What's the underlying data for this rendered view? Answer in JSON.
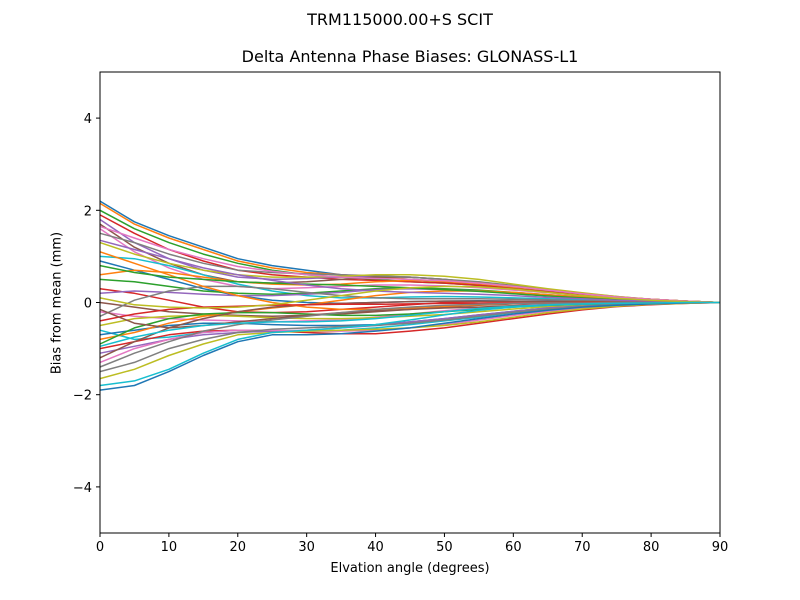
{
  "chart_data": {
    "type": "line",
    "suptitle": "TRM115000.00+S  SCIT",
    "title": "Delta Antenna Phase Biases: GLONASS-L1",
    "xlabel": "Elvation angle (degrees)",
    "ylabel": "Bias from mean (mm)",
    "xlim": [
      0,
      90
    ],
    "ylim": [
      -5,
      5
    ],
    "xticks": [
      0,
      10,
      20,
      30,
      40,
      50,
      60,
      70,
      80,
      90
    ],
    "yticks": [
      -4,
      -2,
      0,
      2,
      4
    ],
    "ytick_labels": [
      "−4",
      "−2",
      "0",
      "2",
      "4"
    ],
    "grid": false,
    "legend": "none",
    "x": [
      0,
      5,
      10,
      15,
      20,
      25,
      30,
      35,
      40,
      45,
      50,
      55,
      60,
      65,
      70,
      75,
      80,
      85,
      90
    ],
    "series": [
      {
        "values": [
          2.2,
          1.75,
          1.45,
          1.2,
          0.95,
          0.8,
          0.7,
          0.6,
          0.55,
          0.5,
          0.45,
          0.4,
          0.33,
          0.25,
          0.18,
          0.12,
          0.07,
          0.03,
          0
        ]
      },
      {
        "values": [
          2.15,
          1.7,
          1.4,
          1.15,
          0.9,
          0.75,
          0.65,
          0.6,
          0.55,
          0.5,
          0.45,
          0.4,
          0.32,
          0.25,
          0.18,
          0.12,
          0.07,
          0.03,
          0
        ]
      },
      {
        "values": [
          2.0,
          1.6,
          1.3,
          1.05,
          0.85,
          0.7,
          0.6,
          0.55,
          0.5,
          0.45,
          0.42,
          0.37,
          0.3,
          0.23,
          0.17,
          0.11,
          0.06,
          0.03,
          0
        ]
      },
      {
        "values": [
          1.9,
          1.5,
          1.15,
          0.9,
          0.7,
          0.6,
          0.55,
          0.5,
          0.48,
          0.45,
          0.42,
          0.37,
          0.3,
          0.23,
          0.17,
          0.11,
          0.06,
          0.03,
          0
        ]
      },
      {
        "values": [
          1.8,
          1.3,
          0.95,
          0.7,
          0.55,
          0.5,
          0.52,
          0.55,
          0.57,
          0.55,
          0.5,
          0.43,
          0.35,
          0.27,
          0.19,
          0.12,
          0.07,
          0.03,
          0
        ]
      },
      {
        "values": [
          1.7,
          1.2,
          0.85,
          0.6,
          0.45,
          0.42,
          0.45,
          0.5,
          0.55,
          0.55,
          0.5,
          0.43,
          0.35,
          0.27,
          0.19,
          0.12,
          0.07,
          0.03,
          0
        ]
      },
      {
        "values": [
          1.6,
          1.1,
          0.75,
          0.5,
          0.35,
          0.3,
          0.32,
          0.35,
          0.38,
          0.38,
          0.36,
          0.32,
          0.27,
          0.21,
          0.15,
          0.1,
          0.06,
          0.02,
          0
        ]
      },
      {
        "values": [
          1.5,
          1.3,
          1.05,
          0.85,
          0.7,
          0.65,
          0.62,
          0.6,
          0.58,
          0.55,
          0.5,
          0.45,
          0.37,
          0.28,
          0.2,
          0.13,
          0.07,
          0.03,
          0
        ]
      },
      {
        "values": [
          1.3,
          1.05,
          0.85,
          0.7,
          0.6,
          0.55,
          0.55,
          0.57,
          0.6,
          0.6,
          0.57,
          0.5,
          0.4,
          0.3,
          0.21,
          0.13,
          0.07,
          0.03,
          0
        ]
      },
      {
        "values": [
          1.0,
          0.95,
          0.8,
          0.6,
          0.4,
          0.25,
          0.15,
          0.1,
          0.1,
          0.12,
          0.13,
          0.12,
          0.1,
          0.08,
          0.06,
          0.04,
          0.02,
          0.01,
          0
        ]
      },
      {
        "values": [
          0.9,
          0.7,
          0.5,
          0.3,
          0.15,
          0.05,
          0.0,
          -0.02,
          0.0,
          0.02,
          0.03,
          0.04,
          0.03,
          0.03,
          0.02,
          0.01,
          0.01,
          0.0,
          0
        ]
      },
      {
        "values": [
          0.6,
          0.7,
          0.65,
          0.55,
          0.45,
          0.4,
          0.38,
          0.4,
          0.45,
          0.48,
          0.47,
          0.42,
          0.35,
          0.27,
          0.19,
          0.12,
          0.07,
          0.03,
          0
        ]
      },
      {
        "values": [
          0.5,
          0.45,
          0.35,
          0.25,
          0.2,
          0.18,
          0.2,
          0.25,
          0.3,
          0.32,
          0.3,
          0.27,
          0.22,
          0.17,
          0.12,
          0.08,
          0.04,
          0.02,
          0
        ]
      },
      {
        "values": [
          0.3,
          0.2,
          0.05,
          -0.1,
          -0.2,
          -0.22,
          -0.2,
          -0.15,
          -0.1,
          -0.05,
          0.0,
          0.02,
          0.02,
          0.02,
          0.02,
          0.01,
          0.01,
          0.0,
          0
        ]
      },
      {
        "values": [
          0.2,
          0.25,
          0.22,
          0.18,
          0.15,
          0.15,
          0.18,
          0.22,
          0.28,
          0.3,
          0.28,
          0.25,
          0.2,
          0.15,
          0.11,
          0.07,
          0.04,
          0.02,
          0
        ]
      },
      {
        "values": [
          0.0,
          -0.1,
          -0.2,
          -0.25,
          -0.28,
          -0.3,
          -0.28,
          -0.25,
          -0.2,
          -0.15,
          -0.1,
          -0.06,
          -0.03,
          -0.02,
          -0.01,
          -0.01,
          0.0,
          0.0,
          0
        ]
      },
      {
        "values": [
          -0.2,
          -0.3,
          -0.35,
          -0.38,
          -0.4,
          -0.42,
          -0.4,
          -0.38,
          -0.32,
          -0.25,
          -0.18,
          -0.12,
          -0.07,
          -0.04,
          -0.03,
          -0.02,
          -0.01,
          0.0,
          0
        ]
      },
      {
        "values": [
          -0.3,
          0.05,
          0.25,
          0.35,
          0.35,
          0.3,
          0.22,
          0.15,
          0.1,
          0.08,
          0.08,
          0.08,
          0.07,
          0.06,
          0.04,
          0.03,
          0.02,
          0.01,
          0
        ]
      },
      {
        "values": [
          -0.5,
          -0.35,
          -0.3,
          -0.28,
          -0.3,
          -0.33,
          -0.35,
          -0.35,
          -0.33,
          -0.3,
          -0.26,
          -0.2,
          -0.14,
          -0.09,
          -0.06,
          -0.04,
          -0.02,
          -0.01,
          0
        ]
      },
      {
        "values": [
          -0.6,
          -0.8,
          -0.75,
          -0.65,
          -0.6,
          -0.62,
          -0.62,
          -0.6,
          -0.55,
          -0.48,
          -0.4,
          -0.32,
          -0.22,
          -0.15,
          -0.09,
          -0.05,
          -0.03,
          -0.01,
          0
        ]
      },
      {
        "values": [
          -0.7,
          -0.6,
          -0.5,
          -0.45,
          -0.45,
          -0.48,
          -0.5,
          -0.5,
          -0.48,
          -0.42,
          -0.35,
          -0.27,
          -0.19,
          -0.12,
          -0.08,
          -0.05,
          -0.03,
          -0.01,
          0
        ]
      },
      {
        "values": [
          -0.8,
          -0.65,
          -0.45,
          -0.3,
          -0.2,
          -0.12,
          -0.05,
          0.05,
          0.15,
          0.22,
          0.25,
          0.25,
          0.22,
          0.17,
          0.12,
          0.08,
          0.04,
          0.02,
          0
        ]
      },
      {
        "values": [
          -0.9,
          -0.55,
          -0.35,
          -0.25,
          -0.22,
          -0.22,
          -0.25,
          -0.28,
          -0.28,
          -0.25,
          -0.2,
          -0.15,
          -0.1,
          -0.06,
          -0.04,
          -0.03,
          -0.02,
          -0.01,
          0
        ]
      },
      {
        "values": [
          -1.0,
          -0.85,
          -0.7,
          -0.62,
          -0.6,
          -0.62,
          -0.65,
          -0.68,
          -0.68,
          -0.62,
          -0.55,
          -0.45,
          -0.35,
          -0.25,
          -0.16,
          -0.09,
          -0.05,
          -0.02,
          0
        ]
      },
      {
        "values": [
          -1.1,
          -0.95,
          -0.8,
          -0.7,
          -0.65,
          -0.62,
          -0.6,
          -0.55,
          -0.5,
          -0.42,
          -0.35,
          -0.27,
          -0.19,
          -0.12,
          -0.08,
          -0.05,
          -0.03,
          -0.01,
          0
        ]
      },
      {
        "values": [
          -1.2,
          -0.85,
          -0.55,
          -0.35,
          -0.2,
          -0.1,
          -0.05,
          -0.02,
          0.0,
          0.02,
          0.03,
          0.03,
          0.03,
          0.02,
          0.02,
          0.01,
          0.01,
          0.0,
          0
        ]
      },
      {
        "values": [
          -1.3,
          -1.0,
          -0.8,
          -0.65,
          -0.6,
          -0.6,
          -0.62,
          -0.62,
          -0.6,
          -0.55,
          -0.48,
          -0.38,
          -0.28,
          -0.19,
          -0.12,
          -0.07,
          -0.04,
          -0.02,
          0
        ]
      },
      {
        "values": [
          -1.5,
          -1.3,
          -1.0,
          -0.8,
          -0.65,
          -0.58,
          -0.55,
          -0.52,
          -0.5,
          -0.45,
          -0.38,
          -0.3,
          -0.21,
          -0.14,
          -0.09,
          -0.05,
          -0.03,
          -0.01,
          0
        ]
      },
      {
        "values": [
          -1.65,
          -1.45,
          -1.15,
          -0.9,
          -0.7,
          -0.65,
          -0.62,
          -0.6,
          -0.58,
          -0.55,
          -0.5,
          -0.42,
          -0.32,
          -0.22,
          -0.14,
          -0.08,
          -0.04,
          -0.02,
          0
        ]
      },
      {
        "values": [
          -1.8,
          -1.7,
          -1.45,
          -1.1,
          -0.8,
          -0.65,
          -0.6,
          -0.55,
          -0.48,
          -0.38,
          -0.27,
          -0.17,
          -0.1,
          -0.06,
          -0.04,
          -0.02,
          -0.01,
          0.0,
          0
        ]
      },
      {
        "values": [
          -1.9,
          -1.8,
          -1.5,
          -1.15,
          -0.85,
          -0.7,
          -0.7,
          -0.68,
          -0.62,
          -0.55,
          -0.45,
          -0.35,
          -0.25,
          -0.17,
          -0.1,
          -0.06,
          -0.03,
          -0.01,
          0
        ]
      },
      {
        "values": [
          1.1,
          0.85,
          0.6,
          0.35,
          0.15,
          0.0,
          -0.1,
          -0.15,
          -0.15,
          -0.12,
          -0.08,
          -0.05,
          -0.02,
          -0.01,
          0.0,
          0.0,
          0.0,
          0.0,
          0
        ]
      },
      {
        "values": [
          0.8,
          0.65,
          0.55,
          0.5,
          0.45,
          0.42,
          0.4,
          0.38,
          0.35,
          0.32,
          0.28,
          0.24,
          0.19,
          0.14,
          0.1,
          0.06,
          0.03,
          0.01,
          0
        ]
      },
      {
        "values": [
          -0.4,
          -0.25,
          -0.15,
          -0.1,
          -0.08,
          -0.06,
          -0.05,
          -0.04,
          -0.04,
          -0.03,
          -0.02,
          -0.02,
          -0.01,
          -0.01,
          0.0,
          0.0,
          0.0,
          0.0,
          0
        ]
      },
      {
        "values": [
          1.35,
          1.15,
          0.95,
          0.75,
          0.6,
          0.48,
          0.38,
          0.3,
          0.25,
          0.22,
          0.2,
          0.18,
          0.15,
          0.11,
          0.08,
          0.05,
          0.03,
          0.01,
          0
        ]
      },
      {
        "values": [
          -0.15,
          -0.45,
          -0.55,
          -0.5,
          -0.42,
          -0.35,
          -0.28,
          -0.22,
          -0.18,
          -0.15,
          -0.12,
          -0.1,
          -0.07,
          -0.05,
          -0.03,
          -0.02,
          -0.01,
          0.0,
          0
        ]
      },
      {
        "values": [
          1.65,
          1.4,
          1.15,
          0.95,
          0.78,
          0.68,
          0.6,
          0.55,
          0.52,
          0.5,
          0.47,
          0.42,
          0.35,
          0.27,
          0.19,
          0.12,
          0.07,
          0.03,
          0
        ]
      },
      {
        "values": [
          -1.4,
          -1.1,
          -0.85,
          -0.62,
          -0.48,
          -0.38,
          -0.3,
          -0.22,
          -0.15,
          -0.1,
          -0.06,
          -0.04,
          -0.02,
          -0.01,
          -0.01,
          0.0,
          0.0,
          0.0,
          0
        ]
      },
      {
        "values": [
          0.1,
          -0.05,
          -0.1,
          -0.12,
          -0.1,
          -0.05,
          0.05,
          0.15,
          0.25,
          0.32,
          0.35,
          0.34,
          0.29,
          0.22,
          0.15,
          0.09,
          0.05,
          0.02,
          0
        ]
      },
      {
        "values": [
          -0.95,
          -0.75,
          -0.6,
          -0.5,
          -0.45,
          -0.42,
          -0.42,
          -0.4,
          -0.35,
          -0.28,
          -0.2,
          -0.13,
          -0.08,
          -0.05,
          -0.03,
          -0.02,
          -0.01,
          0.0,
          0
        ]
      }
    ]
  },
  "colors": {
    "cycle": [
      "#1f77b4",
      "#ff7f0e",
      "#2ca02c",
      "#d62728",
      "#9467bd",
      "#8c564b",
      "#e377c2",
      "#7f7f7f",
      "#bcbd22",
      "#17becf"
    ],
    "axes": "#000000",
    "background": "#ffffff"
  }
}
